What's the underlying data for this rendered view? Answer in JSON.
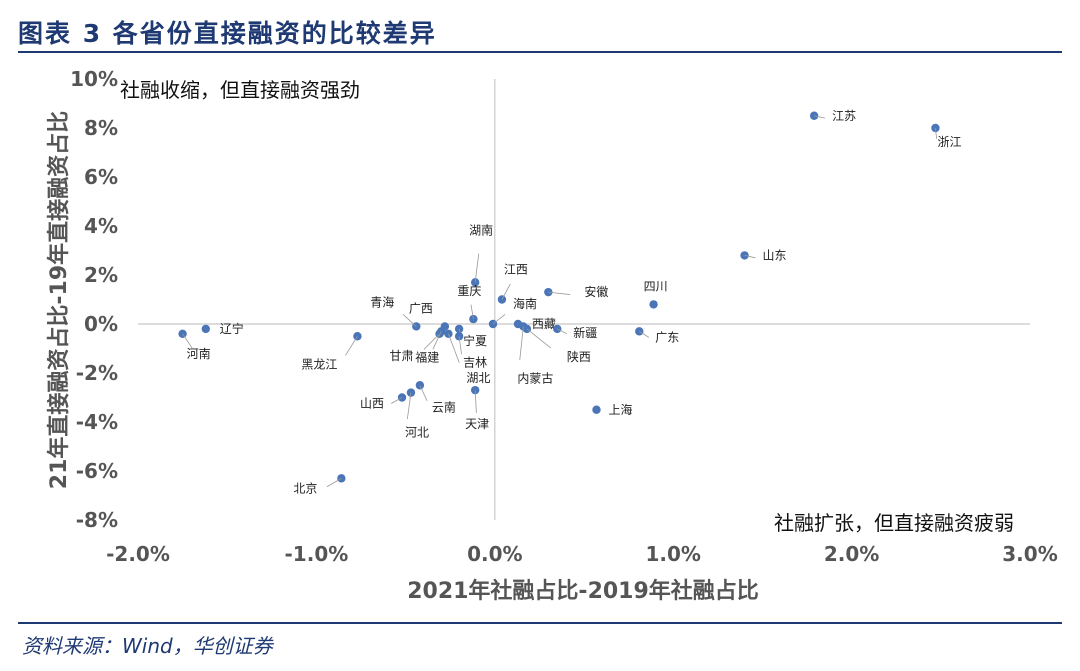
{
  "header": {
    "title": "图表 3   各省份直接融资的比较差异"
  },
  "source": "资料来源：Wind，华创证券",
  "colors": {
    "accent": "#1f3a73",
    "point": "#4a76b8",
    "axis": "#c8c8c8"
  },
  "chart_data": {
    "type": "scatter",
    "xlabel": "2021年社融占比-2019年社融占比",
    "ylabel": "21年直接融资占比-19年直接融资占比",
    "xlim": [
      -0.02,
      0.03
    ],
    "ylim": [
      -0.08,
      0.1
    ],
    "xticks": [
      -0.02,
      -0.01,
      0.0,
      0.01,
      0.02,
      0.03
    ],
    "yticks": [
      -0.08,
      -0.06,
      -0.04,
      -0.02,
      0.0,
      0.02,
      0.04,
      0.06,
      0.08,
      0.1
    ],
    "xtick_labels": [
      "-2.0%",
      "-1.0%",
      "0.0%",
      "1.0%",
      "2.0%",
      "3.0%"
    ],
    "ytick_labels": [
      "-8%",
      "-6%",
      "-4%",
      "-2%",
      "0%",
      "2%",
      "4%",
      "6%",
      "8%",
      "10%"
    ],
    "grid": false,
    "annotations": [
      "社融收缩，但直接融资强劲",
      "社融扩张，但直接融资疲弱"
    ],
    "points": [
      {
        "name": "江苏",
        "x": 0.0179,
        "y": 0.085
      },
      {
        "name": "浙江",
        "x": 0.0247,
        "y": 0.08
      },
      {
        "name": "山东",
        "x": 0.014,
        "y": 0.028
      },
      {
        "name": "四川",
        "x": 0.0089,
        "y": 0.008
      },
      {
        "name": "安徽",
        "x": 0.003,
        "y": 0.013
      },
      {
        "name": "江西",
        "x": 0.0004,
        "y": 0.01
      },
      {
        "name": "湖南",
        "x": -0.0011,
        "y": 0.017
      },
      {
        "name": "广东",
        "x": 0.0081,
        "y": -0.003
      },
      {
        "name": "上海",
        "x": 0.0057,
        "y": -0.035
      },
      {
        "name": "辽宁",
        "x": -0.0162,
        "y": -0.002
      },
      {
        "name": "河南",
        "x": -0.0175,
        "y": -0.004
      },
      {
        "name": "黑龙江",
        "x": -0.0077,
        "y": -0.005
      },
      {
        "name": "青海",
        "x": -0.0044,
        "y": -0.001
      },
      {
        "name": "广西",
        "x": -0.0028,
        "y": -0.001
      },
      {
        "name": "重庆",
        "x": -0.0012,
        "y": 0.002
      },
      {
        "name": "海南",
        "x": -0.0001,
        "y": 0.0
      },
      {
        "name": "西藏",
        "x": 0.0013,
        "y": 0.0
      },
      {
        "name": "新疆",
        "x": 0.0035,
        "y": -0.002
      },
      {
        "name": "陕西",
        "x": 0.0018,
        "y": -0.002
      },
      {
        "name": "内蒙古",
        "x": 0.0016,
        "y": -0.001
      },
      {
        "name": "宁夏",
        "x": -0.002,
        "y": -0.002
      },
      {
        "name": "吉林",
        "x": -0.002,
        "y": -0.005
      },
      {
        "name": "湖北",
        "x": -0.0026,
        "y": -0.004
      },
      {
        "name": "甘肃",
        "x": -0.0031,
        "y": -0.004
      },
      {
        "name": "福建",
        "x": -0.003,
        "y": -0.003
      },
      {
        "name": "云南",
        "x": -0.0042,
        "y": -0.025
      },
      {
        "name": "山西",
        "x": -0.0052,
        "y": -0.03
      },
      {
        "name": "河北",
        "x": -0.0047,
        "y": -0.028
      },
      {
        "name": "天津",
        "x": -0.0011,
        "y": -0.027
      },
      {
        "name": "北京",
        "x": -0.0086,
        "y": -0.063
      }
    ]
  }
}
